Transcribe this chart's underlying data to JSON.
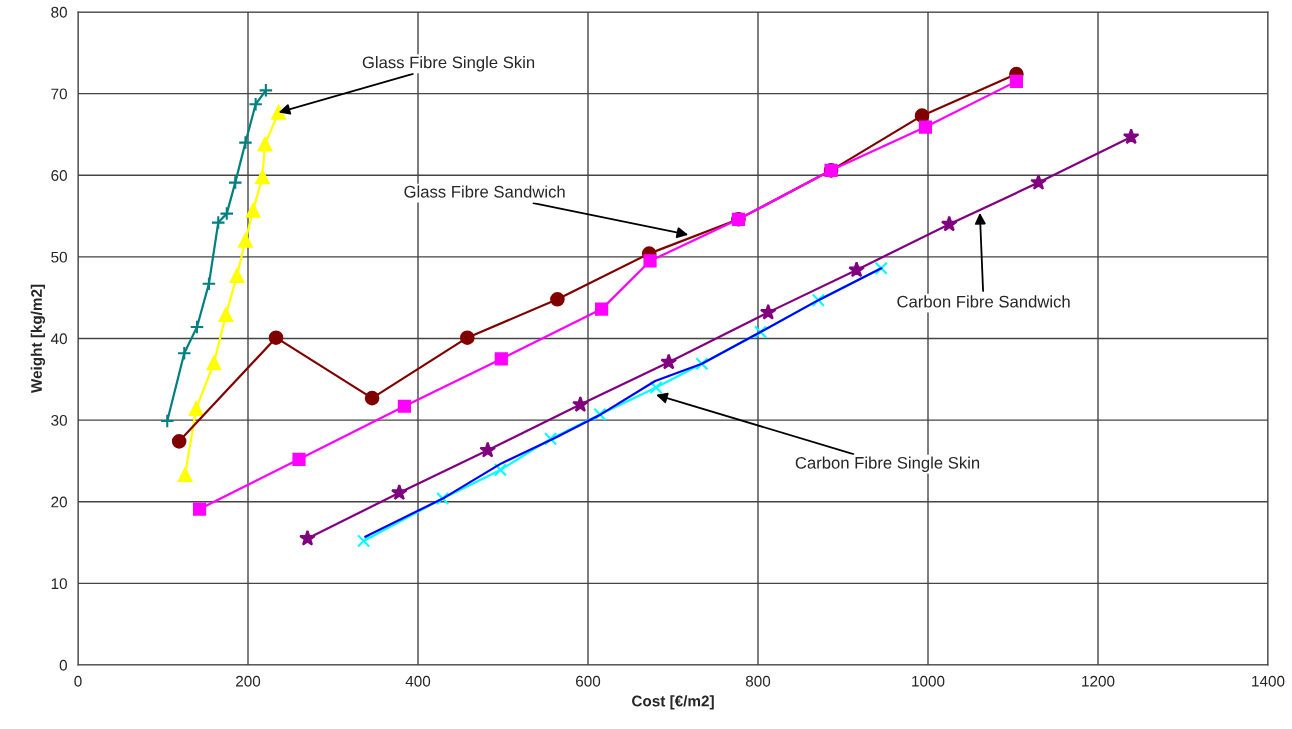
{
  "chart_data": {
    "type": "line",
    "xlabel": "Cost [€/m2]",
    "ylabel": "Weight [kg/m2]",
    "xlim": [
      0,
      1400
    ],
    "xticks": [
      0,
      200,
      400,
      600,
      800,
      1000,
      1200,
      1400
    ],
    "ylim": [
      0,
      80
    ],
    "yticks": [
      0,
      10,
      20,
      30,
      40,
      50,
      60,
      70,
      80
    ],
    "grid": true,
    "legend": false,
    "series": [
      {
        "color": "#008080",
        "marker": "plus",
        "x": [
          105,
          125,
          140,
          154,
          165,
          175,
          185,
          197,
          209,
          221
        ],
        "values": [
          29.9,
          38.2,
          41.4,
          46.7,
          54.2,
          55.3,
          59.1,
          64.0,
          68.7,
          70.4
        ]
      },
      {
        "color": "#ffff00",
        "marker": "triangle",
        "x": [
          126,
          139,
          160,
          174,
          187,
          197,
          206,
          217,
          220,
          236
        ],
        "values": [
          23.3,
          31.4,
          37.0,
          42.9,
          47.7,
          52.0,
          55.7,
          59.8,
          63.8,
          67.7
        ]
      },
      {
        "color": "#800000",
        "marker": "circle",
        "x": [
          119,
          233,
          346,
          458,
          564,
          672,
          777,
          886,
          993,
          1104
        ],
        "values": [
          27.4,
          40.1,
          32.7,
          40.1,
          44.8,
          50.4,
          54.6,
          60.6,
          67.3,
          72.4
        ]
      },
      {
        "color": "#ff00ff",
        "marker": "square",
        "x": [
          143,
          260,
          384,
          498,
          616,
          673,
          777,
          886,
          997,
          1104
        ],
        "values": [
          19.1,
          25.2,
          31.7,
          37.5,
          43.6,
          49.5,
          54.6,
          60.6,
          65.9,
          71.5
        ]
      },
      {
        "color": "#800080",
        "marker": "star",
        "x": [
          270,
          378,
          482,
          591,
          695,
          812,
          916,
          1025,
          1130,
          1239
        ],
        "values": [
          15.5,
          21.1,
          26.3,
          31.9,
          37.1,
          43.2,
          48.4,
          54.0,
          59.1,
          64.7
        ]
      },
      {
        "color": "#00ffff",
        "marker": "cross",
        "x": [
          336,
          429,
          497,
          556,
          614,
          680,
          734,
          803,
          871,
          945
        ],
        "values": [
          15.2,
          20.4,
          23.9,
          27.7,
          30.7,
          34.0,
          36.9,
          40.8,
          44.7,
          48.6
        ]
      },
      {
        "color": "#0000ff",
        "marker": "none",
        "x": [
          338,
          431,
          498,
          561,
          615,
          679,
          734,
          803,
          871,
          945
        ],
        "values": [
          15.7,
          20.5,
          24.7,
          27.8,
          30.7,
          34.8,
          36.9,
          40.8,
          44.7,
          48.6
        ]
      }
    ],
    "annotations": [
      {
        "text": "Glass Fibre Single Skin",
        "x": 236,
        "y": 67.7
      },
      {
        "text": "Glass Fibre Sandwich",
        "x": 718,
        "y": 52.7
      },
      {
        "text": "Carbon Fibre Sandwich",
        "x": 1061,
        "y": 55.4
      },
      {
        "text": "Carbon Fibre Single Skin",
        "x": 680,
        "y": 33.1
      }
    ]
  }
}
